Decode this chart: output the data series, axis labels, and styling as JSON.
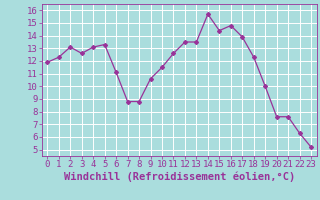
{
  "x": [
    0,
    1,
    2,
    3,
    4,
    5,
    6,
    7,
    8,
    9,
    10,
    11,
    12,
    13,
    14,
    15,
    16,
    17,
    18,
    19,
    20,
    21,
    22,
    23
  ],
  "y": [
    11.9,
    12.3,
    13.1,
    12.6,
    13.1,
    13.3,
    11.1,
    8.8,
    8.8,
    10.6,
    11.5,
    12.6,
    13.5,
    13.5,
    15.7,
    14.4,
    14.8,
    13.9,
    12.3,
    10.0,
    7.6,
    7.6,
    6.3,
    5.2
  ],
  "line_color": "#993399",
  "marker": "D",
  "marker_size": 2,
  "bg_color": "#aadddd",
  "grid_color": "#ffffff",
  "xlabel": "Windchill (Refroidissement éolien,°C)",
  "xlabel_color": "#993399",
  "ylim": [
    4.5,
    16.5
  ],
  "xlim": [
    -0.5,
    23.5
  ],
  "yticks": [
    5,
    6,
    7,
    8,
    9,
    10,
    11,
    12,
    13,
    14,
    15,
    16
  ],
  "xticks": [
    0,
    1,
    2,
    3,
    4,
    5,
    6,
    7,
    8,
    9,
    10,
    11,
    12,
    13,
    14,
    15,
    16,
    17,
    18,
    19,
    20,
    21,
    22,
    23
  ],
  "tick_label_size": 6.5,
  "xlabel_size": 7.5
}
